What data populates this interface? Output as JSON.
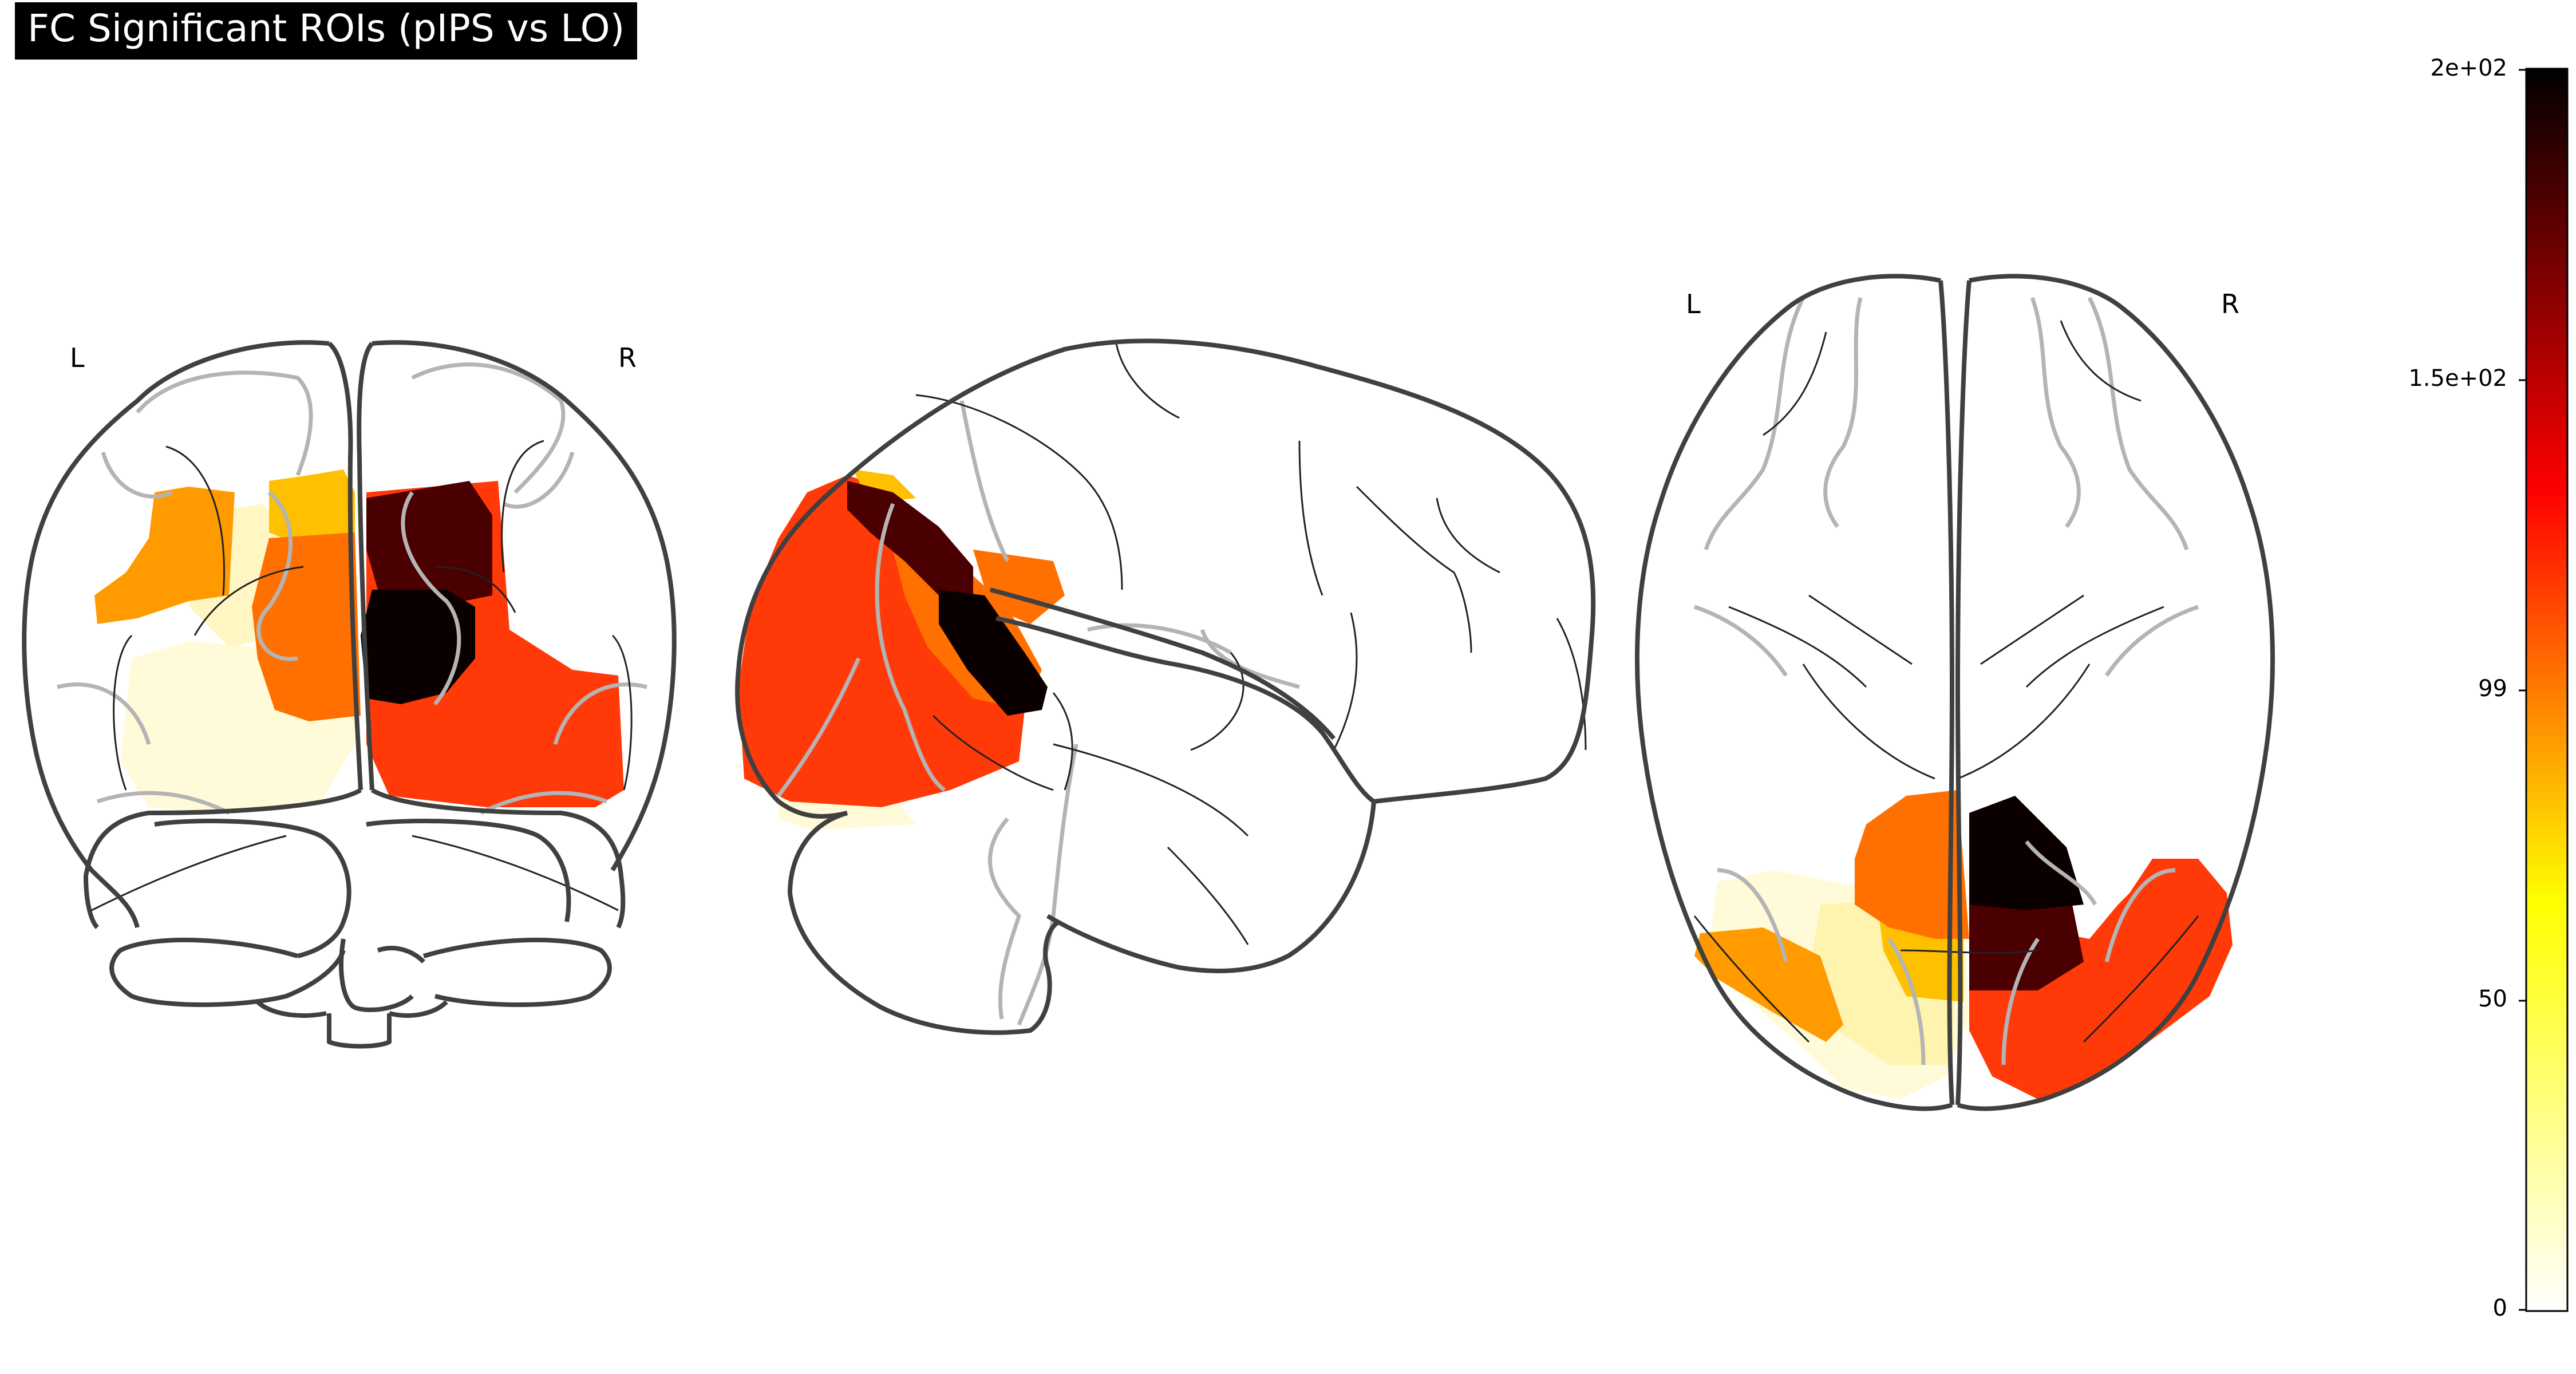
{
  "title": "FC Significant ROIs (pIPS vs LO)",
  "views": {
    "coronal": {
      "left_label": "L",
      "right_label": "R"
    },
    "axial": {
      "left_label": "L",
      "right_label": "R"
    }
  },
  "colorbar": {
    "colormap": "hot_r",
    "min": 0,
    "max": 200,
    "tick_labels": [
      "2e+02",
      "1.5e+02",
      "99",
      "50",
      "0"
    ],
    "tick_values": [
      200,
      150,
      99,
      50,
      0
    ]
  },
  "colors": {
    "outline": "#404040",
    "sulci": "#b4b4b4",
    "roi_levels": [
      "#fffbd8",
      "#fff3b0",
      "#ffc000",
      "#ff9a00",
      "#ff7000",
      "#ff3a08",
      "#4a0000",
      "#0a0000"
    ]
  }
}
